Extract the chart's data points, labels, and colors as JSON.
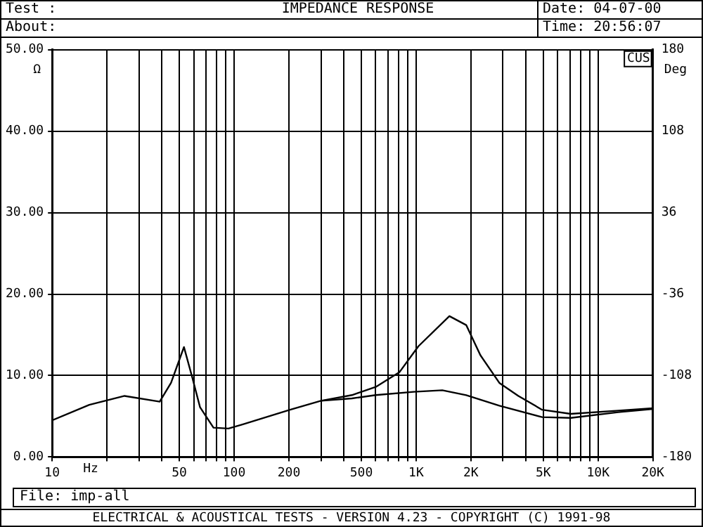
{
  "chart_data": {
    "type": "line",
    "title": "IMPEDANCE RESPONSE",
    "xlabel": "Hz",
    "ylabel": "Ω",
    "y2label": "Deg",
    "annotations": [
      "Test :",
      "About:",
      "Date: 04-07-00",
      "Time: 20:56:07",
      "File: imp-all",
      "CUS",
      "ELECTRICAL & ACOUSTICAL TESTS - VERSION 4.23 - COPYRIGHT (C) 1991-98"
    ],
    "log": "x",
    "grid": true,
    "legend": false,
    "marker": "none",
    "line_style": "solid",
    "xlim": [
      10,
      20000
    ],
    "xticks": [
      10,
      {
        "value": 20,
        "label": null
      },
      {
        "value": 30,
        "label": null
      },
      {
        "value": 40,
        "label": null
      },
      50,
      {
        "value": 60,
        "label": null
      },
      {
        "value": 70,
        "label": null
      },
      {
        "value": 80,
        "label": null
      },
      {
        "value": 90,
        "label": null
      },
      100,
      200,
      {
        "value": 300,
        "label": null
      },
      {
        "value": 400,
        "label": null
      },
      500,
      {
        "value": 600,
        "label": null
      },
      {
        "value": 700,
        "label": null
      },
      {
        "value": 800,
        "label": null
      },
      {
        "value": 900,
        "label": null
      },
      {
        "value": 1000,
        "label": "1K"
      },
      {
        "value": 2000,
        "label": "2K"
      },
      {
        "value": 3000,
        "label": null
      },
      {
        "value": 4000,
        "label": null
      },
      {
        "value": 5000,
        "label": "5K"
      },
      {
        "value": 6000,
        "label": null
      },
      {
        "value": 7000,
        "label": null
      },
      {
        "value": 8000,
        "label": null
      },
      {
        "value": 9000,
        "label": null
      },
      {
        "value": 10000,
        "label": "10K"
      },
      {
        "value": 20000,
        "label": "20K"
      }
    ],
    "ylim": [
      0,
      50
    ],
    "yticks": [
      {
        "value": 0,
        "label": "0.00"
      },
      {
        "value": 10,
        "label": "10.00"
      },
      {
        "value": 20,
        "label": "20.00"
      },
      {
        "value": 30,
        "label": "30.00"
      },
      {
        "value": 40,
        "label": "40.00"
      },
      {
        "value": 50,
        "label": "50.00"
      }
    ],
    "y2lim": [
      -180,
      180
    ],
    "y2ticks": [
      -180,
      -108,
      -36,
      36,
      108,
      180
    ],
    "series": [
      {
        "color": "#000000",
        "x": [
          10,
          16,
          25,
          39,
          45,
          53,
          59,
          65,
          77,
          93,
          111,
          203,
          300,
          444,
          600,
          809,
          1030,
          1524,
          1885,
          2256,
          2868,
          3648,
          4928,
          7080,
          12900,
          20000
        ],
        "values": [
          4.5,
          6.4,
          7.5,
          6.8,
          9.1,
          13.5,
          9.7,
          6.1,
          3.6,
          3.5,
          4.0,
          5.8,
          6.9,
          7.6,
          8.6,
          10.4,
          13.6,
          17.3,
          16.2,
          12.5,
          9.1,
          7.5,
          5.8,
          5.3,
          5.7,
          6.0
        ]
      },
      {
        "color": "#000000",
        "x": [
          300,
          444,
          600,
          970,
          1393,
          1885,
          2868,
          4928,
          7080,
          12900,
          20000
        ],
        "values": [
          6.9,
          7.2,
          7.6,
          8.0,
          8.2,
          7.6,
          6.3,
          4.9,
          4.8,
          5.5,
          5.9
        ]
      }
    ]
  }
}
